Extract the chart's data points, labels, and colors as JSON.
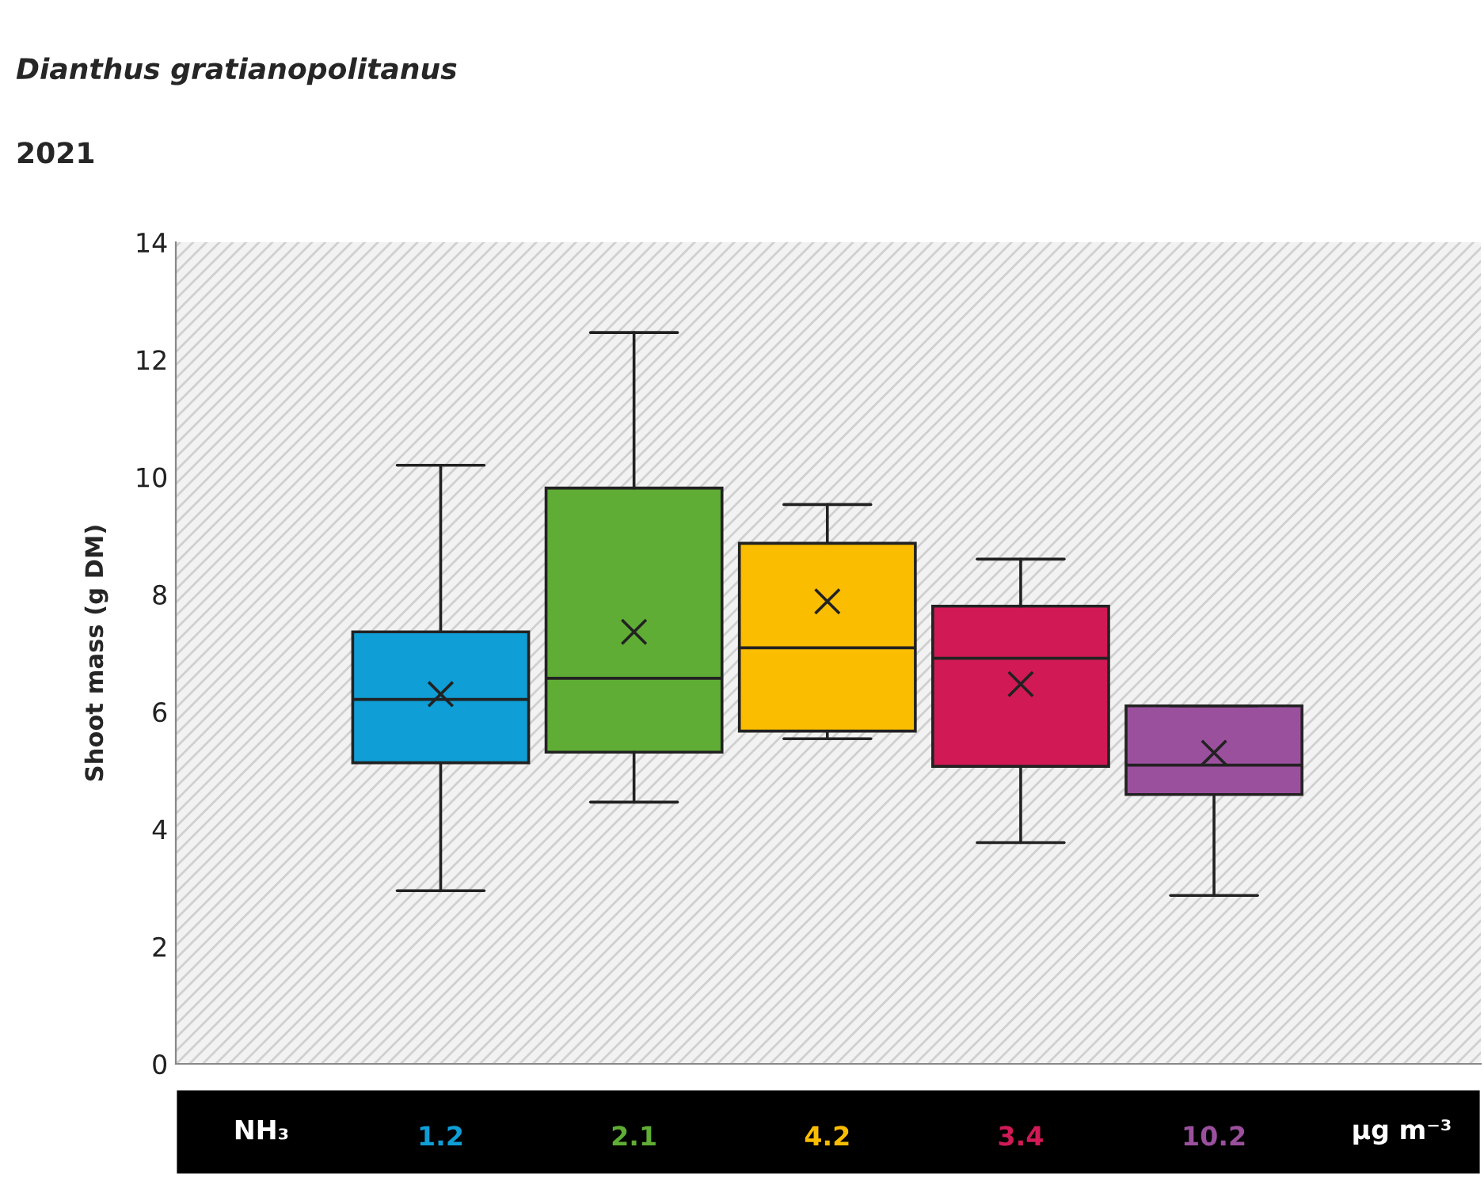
{
  "chart_data": {
    "type": "box",
    "title": "Dianthus gratianopolitanus",
    "subtitle": "2021",
    "ylabel": "Shoot mass (g DM)",
    "categories": [
      "1.2",
      "2.1",
      "4.2",
      "3.4",
      "10.2"
    ],
    "colors": [
      "#0f9ed5",
      "#5fad35",
      "#fbbd00",
      "#d11a55",
      "#9b509e"
    ],
    "boxes": [
      {
        "low": 2.95,
        "q1": 5.13,
        "median": 6.21,
        "q3": 7.36,
        "high": 10.2,
        "mean": 6.3
      },
      {
        "low": 4.46,
        "q1": 5.31,
        "median": 6.57,
        "q3": 9.81,
        "high": 12.46,
        "mean": 7.36
      },
      {
        "low": 5.54,
        "q1": 5.67,
        "median": 7.09,
        "q3": 8.87,
        "high": 9.53,
        "mean": 7.88
      },
      {
        "low": 3.77,
        "q1": 5.07,
        "median": 6.91,
        "q3": 7.8,
        "high": 8.6,
        "mean": 6.47
      },
      {
        "low": 2.87,
        "q1": 4.59,
        "median": 5.09,
        "q3": 6.1,
        "high": 6.1,
        "mean": 5.3
      }
    ],
    "ylim": [
      0,
      14
    ],
    "yticks": [
      0,
      2,
      4,
      6,
      8,
      10,
      12,
      14
    ],
    "grid": false,
    "marker": "cross",
    "annotations": [
      "NH₃",
      "µg m⁻³"
    ]
  }
}
